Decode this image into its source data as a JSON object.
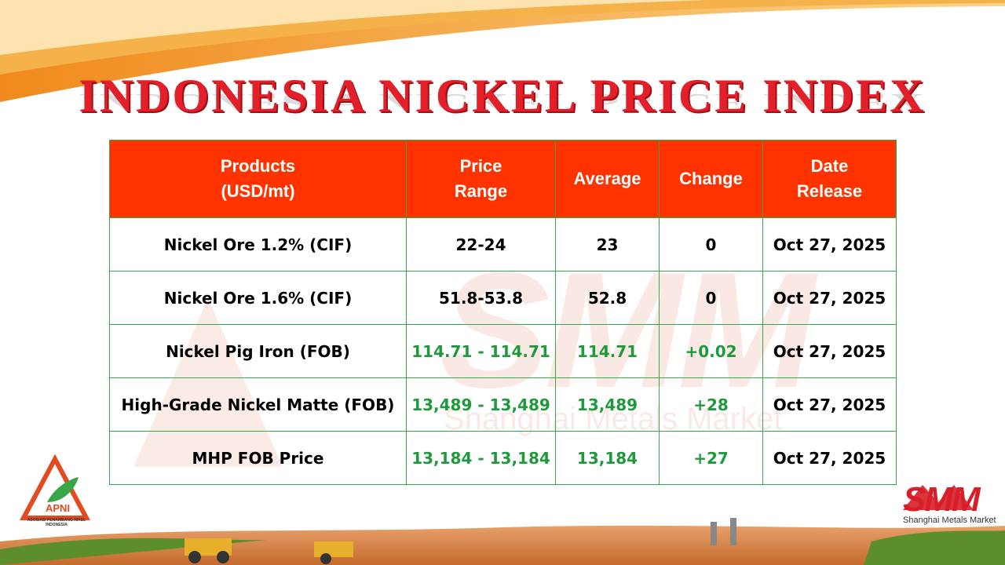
{
  "title": "INDONESIA NICKEL PRICE INDEX",
  "table": {
    "header": [
      [
        "Products",
        "(USD/mt)"
      ],
      [
        "Price",
        "Range"
      ],
      [
        "Average"
      ],
      [
        "Change"
      ],
      [
        "Date",
        "Release"
      ]
    ],
    "header_color": "#ff3300",
    "border_color": "#3aa64a",
    "rows": [
      {
        "cells": [
          "Nickel Ore 1.2% (CIF)",
          "22-24",
          "23",
          "0",
          "Oct 27, 2025"
        ],
        "value_color": "#000000"
      },
      {
        "cells": [
          "Nickel Ore 1.6% (CIF)",
          "51.8-53.8",
          "52.8",
          "0",
          "Oct 27, 2025"
        ],
        "value_color": "#000000"
      },
      {
        "cells": [
          "Nickel Pig Iron (FOB)",
          "114.71 - 114.71",
          "114.71",
          "+0.02",
          "Oct 27, 2025"
        ],
        "value_color": "#1e9a3c"
      },
      {
        "cells": [
          "High-Grade Nickel Matte (FOB)",
          "13,489 - 13,489",
          "13,489",
          "+28",
          "Oct 27, 2025"
        ],
        "value_color": "#1e9a3c"
      },
      {
        "cells": [
          "MHP FOB Price",
          "13,184 - 13,184",
          "13,184",
          "+27",
          "Oct 27, 2025"
        ],
        "value_color": "#1e9a3c"
      }
    ]
  },
  "watermark": {
    "logo": "SMM",
    "text": "Shanghai Metals Market"
  },
  "apni_logo": {
    "name": "APNI",
    "caption": "ASOSIASI PENAMBANG NIKEL INDONESIA"
  },
  "smm_logo": {
    "name": "SMM",
    "caption": "Shanghai Metals Market"
  }
}
